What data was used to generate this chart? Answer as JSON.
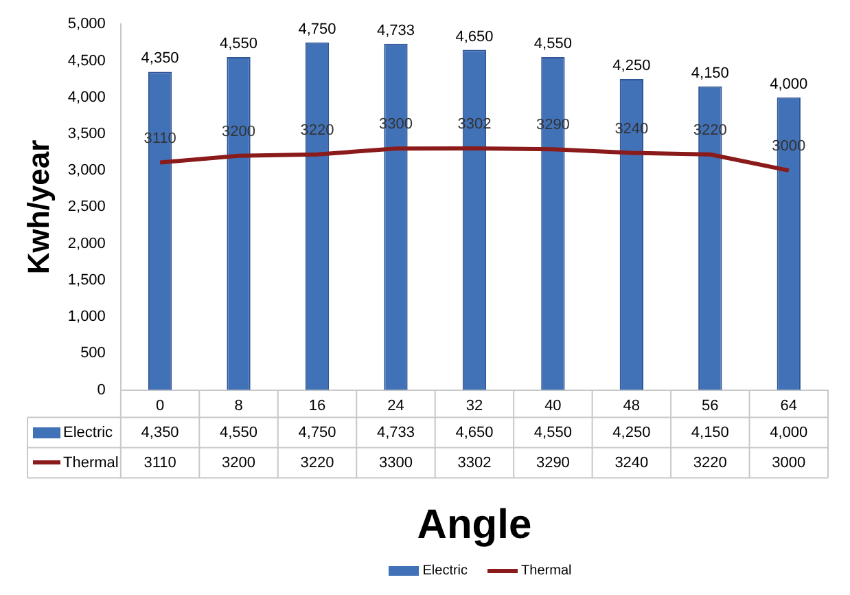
{
  "chart_data": {
    "type": "bar",
    "xlabel": "Angle",
    "ylabel": "Kwh/year",
    "categories": [
      "0",
      "8",
      "16",
      "24",
      "32",
      "40",
      "48",
      "56",
      "64"
    ],
    "series": [
      {
        "name": "Electric",
        "color": "#4172b8",
        "values": [
          4350,
          4550,
          4750,
          4733,
          4650,
          4550,
          4250,
          4150,
          4000
        ],
        "value_labels": [
          "4,350",
          "4,550",
          "4,750",
          "4,733",
          "4,650",
          "4,550",
          "4,250",
          "4,150",
          "4,000"
        ]
      },
      {
        "name": "Thermal",
        "type": "line",
        "color": "#8b1a1a",
        "values": [
          3110,
          3200,
          3220,
          3300,
          3302,
          3290,
          3240,
          3220,
          3000
        ],
        "value_labels": [
          "3110",
          "3200",
          "3220",
          "3300",
          "3302",
          "3290",
          "3240",
          "3220",
          "3000"
        ]
      }
    ],
    "ylim": [
      0,
      5000
    ],
    "yticks": [
      0,
      500,
      {
        "value": 1000,
        "label": "1,000"
      },
      {
        "value": 1500,
        "label": "1,500"
      },
      {
        "value": 2000,
        "label": "2,000"
      },
      {
        "value": 2500,
        "label": "2,500"
      },
      {
        "value": 3000,
        "label": "3,000"
      },
      {
        "value": 3500,
        "label": "3,500"
      },
      {
        "value": 4000,
        "label": "4,000"
      },
      {
        "value": 4500,
        "label": "4,500"
      },
      {
        "value": 5000,
        "label": "5,000"
      }
    ],
    "grid": false,
    "legend": "bottom",
    "marker": "none",
    "line_style": "solid"
  }
}
